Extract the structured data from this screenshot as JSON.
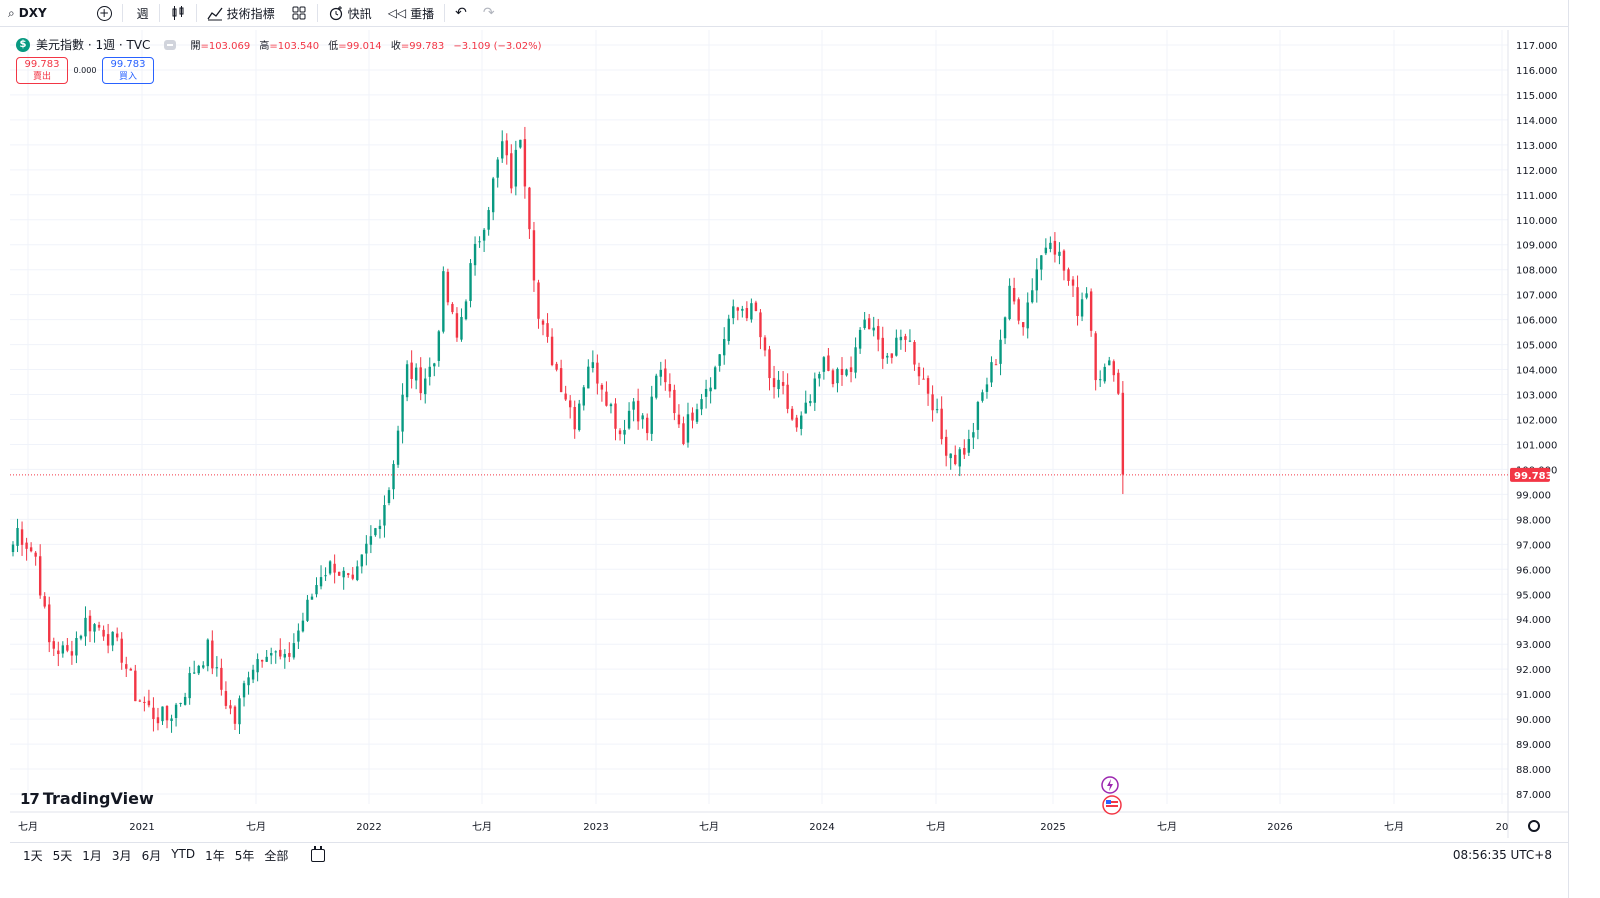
{
  "toolbar": {
    "symbol": "DXY",
    "interval": "週",
    "indicators_label": "技術指標",
    "alert_label": "快訊",
    "replay_label": "重播"
  },
  "legend": {
    "title": "美元指數 · 1週 · TVC",
    "open_label": "開",
    "open": "=103.069",
    "high_label": "高",
    "high": "=103.540",
    "low_label": "低",
    "low": "=99.014",
    "close_label": "收",
    "close": "=99.783",
    "change": "−3.109 (−3.02%)"
  },
  "trade": {
    "sell_price": "99.783",
    "sell_label": "賣出",
    "spread": "0.000",
    "buy_price": "99.783",
    "buy_label": "買入"
  },
  "brand": {
    "name": "TradingView"
  },
  "bottom": {
    "ranges": [
      "1天",
      "5天",
      "1月",
      "3月",
      "6月",
      "YTD",
      "1年",
      "5年",
      "全部"
    ],
    "clock": "08:56:35 UTC+8"
  },
  "colors": {
    "up": "#089981",
    "down": "#f23645",
    "grid": "#f0f3fa",
    "price_line": "#f23645"
  },
  "chart_data": {
    "type": "candlestick",
    "ylim": [
      86.6,
      117.6
    ],
    "y_ticks": [
      "117.000",
      "116.000",
      "115.000",
      "114.000",
      "113.000",
      "112.000",
      "111.000",
      "110.000",
      "109.000",
      "108.000",
      "107.000",
      "106.000",
      "105.000",
      "104.000",
      "103.000",
      "102.000",
      "101.000",
      "100.000",
      "99.000",
      "98.000",
      "97.000",
      "96.000",
      "95.000",
      "94.000",
      "93.000",
      "92.000",
      "91.000",
      "90.000",
      "89.000",
      "88.000",
      "87.000"
    ],
    "x_ticks": [
      "七月",
      "2021",
      "七月",
      "2022",
      "七月",
      "2023",
      "七月",
      "2024",
      "七月",
      "2025",
      "七月",
      "2026",
      "七月",
      "20"
    ],
    "last_price": "99.783",
    "keypoints": [
      [
        0,
        97.0
      ],
      [
        1,
        97.6
      ],
      [
        5,
        96.5
      ],
      [
        8,
        93.0
      ],
      [
        12,
        92.6
      ],
      [
        16,
        93.9
      ],
      [
        20,
        93.6
      ],
      [
        24,
        92.6
      ],
      [
        27,
        91.0
      ],
      [
        31,
        90.2
      ],
      [
        34,
        90.0
      ],
      [
        37,
        90.8
      ],
      [
        40,
        92.0
      ],
      [
        43,
        92.8
      ],
      [
        46,
        91.2
      ],
      [
        49,
        89.9
      ],
      [
        52,
        92.0
      ],
      [
        56,
        92.9
      ],
      [
        60,
        92.2
      ],
      [
        64,
        94.0
      ],
      [
        68,
        95.9
      ],
      [
        71,
        96.2
      ],
      [
        75,
        95.2
      ],
      [
        78,
        96.8
      ],
      [
        80,
        97.6
      ],
      [
        83,
        99.3
      ],
      [
        87,
        104.0
      ],
      [
        90,
        103.5
      ],
      [
        93,
        104.3
      ],
      [
        95,
        107.5
      ],
      [
        98,
        105.2
      ],
      [
        101,
        108.0
      ],
      [
        105,
        110.7
      ],
      [
        108,
        113.0
      ],
      [
        110,
        111.5
      ],
      [
        112,
        113.5
      ],
      [
        114,
        110.0
      ],
      [
        116,
        106.0
      ],
      [
        120,
        104.0
      ],
      [
        124,
        102.0
      ],
      [
        127,
        104.3
      ],
      [
        130,
        103.5
      ],
      [
        134,
        101.5
      ],
      [
        137,
        102.8
      ],
      [
        140,
        101.5
      ],
      [
        142,
        103.9
      ],
      [
        145,
        103.0
      ],
      [
        148,
        101.4
      ],
      [
        151,
        102.8
      ],
      [
        155,
        104.0
      ],
      [
        158,
        106.0
      ],
      [
        161,
        106.5
      ],
      [
        164,
        106.2
      ],
      [
        167,
        103.5
      ],
      [
        170,
        103.0
      ],
      [
        173,
        101.5
      ],
      [
        176,
        102.7
      ],
      [
        179,
        104.2
      ],
      [
        182,
        103.6
      ],
      [
        185,
        104.0
      ],
      [
        188,
        106.0
      ],
      [
        191,
        105.0
      ],
      [
        194,
        104.5
      ],
      [
        197,
        105.5
      ],
      [
        200,
        104.0
      ],
      [
        203,
        102.8
      ],
      [
        205,
        101.2
      ],
      [
        208,
        100.5
      ],
      [
        211,
        101.0
      ],
      [
        214,
        103.0
      ],
      [
        217,
        104.5
      ],
      [
        220,
        107.0
      ],
      [
        223,
        106.0
      ],
      [
        226,
        108.1
      ],
      [
        229,
        109.5
      ],
      [
        231,
        108.5
      ],
      [
        233,
        107.5
      ],
      [
        235,
        106.5
      ],
      [
        237,
        107.3
      ],
      [
        239,
        104.0
      ],
      [
        241,
        103.9
      ],
      [
        243,
        104.2
      ],
      [
        244,
        103.0
      ],
      [
        245,
        99.8
      ]
    ]
  }
}
